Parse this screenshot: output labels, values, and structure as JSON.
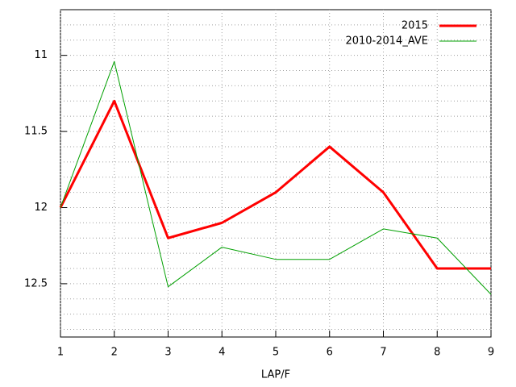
{
  "chart_data": {
    "type": "line",
    "xlabel": "LAP/F",
    "x": [
      1,
      2,
      3,
      4,
      5,
      6,
      7,
      8,
      9
    ],
    "series": [
      {
        "name": "2015",
        "color": "#ff0000",
        "width": 3,
        "values": [
          12.0,
          11.3,
          12.2,
          12.1,
          11.9,
          11.6,
          11.9,
          12.4,
          12.4
        ]
      },
      {
        "name": "2010-2014_AVE",
        "color": "#00a000",
        "width": 1,
        "values": [
          12.0,
          11.04,
          12.52,
          12.26,
          12.34,
          12.34,
          12.14,
          12.2,
          12.57
        ]
      }
    ],
    "xlim": [
      1,
      9
    ],
    "xticks": [
      1,
      2,
      3,
      4,
      5,
      6,
      7,
      8,
      9
    ],
    "ylim": [
      12.85,
      10.7
    ],
    "yticks": [
      11,
      11.5,
      12,
      12.5
    ],
    "y_minor_ticks": [
      10.8,
      10.9,
      11.1,
      11.2,
      11.3,
      11.4,
      11.6,
      11.7,
      11.8,
      11.9,
      12.1,
      12.2,
      12.3,
      12.4,
      12.6,
      12.7,
      12.8
    ],
    "grid": true,
    "legend": "top-right"
  }
}
